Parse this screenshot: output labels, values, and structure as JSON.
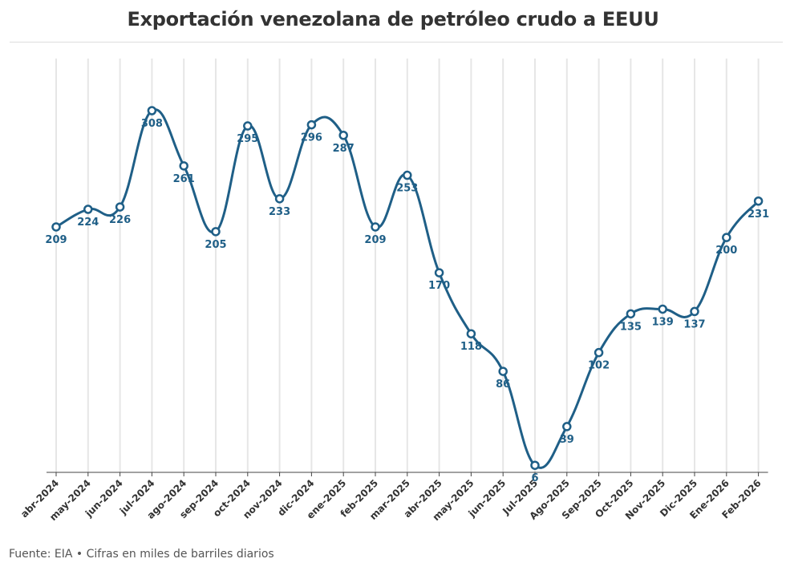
{
  "title": "Exportación venezolana de petróleo crudo a EEUU",
  "source_note": "Fuente: EIA • Cifras en miles de barriles diarios",
  "colors": {
    "line": "#1f5f87",
    "label": "#1f5f87",
    "grid": "#e6e6e6",
    "axis": "#444444"
  },
  "chart_data": {
    "type": "line",
    "title": "Exportación venezolana de petróleo crudo a EEUU",
    "xlabel": "",
    "ylabel": "",
    "ylim": [
      0,
      320
    ],
    "grid": {
      "vertical": true,
      "horizontal": false
    },
    "legend": "none",
    "categories": [
      "abr-2024",
      "may-2024",
      "jun-2024",
      "jul-2024",
      "ago-2024",
      "sep-2024",
      "oct-2024",
      "nov-2024",
      "dic-2024",
      "ene-2025",
      "feb-2025",
      "mar-2025",
      "abr-2025",
      "may-2025",
      "jun-2025",
      "Jul-2025",
      "Ago-2025",
      "Sep-2025",
      "Oct-2025",
      "Nov-2025",
      "Dic-2025",
      "Ene-2026",
      "Feb-2026"
    ],
    "series": [
      {
        "values": [
          209,
          224,
          226,
          308,
          261,
          205,
          295,
          233,
          296,
          287,
          209,
          253,
          170,
          118,
          86,
          6,
          39,
          102,
          135,
          139,
          137,
          200,
          231
        ]
      }
    ],
    "data_labels": [
      "209",
      "224",
      "226",
      "308",
      "261",
      "205",
      "295",
      "233",
      "296",
      "287",
      "209",
      "253",
      "170",
      "118",
      "86",
      "6",
      "39",
      "102",
      "135",
      "139",
      "137",
      "200",
      "231"
    ]
  }
}
